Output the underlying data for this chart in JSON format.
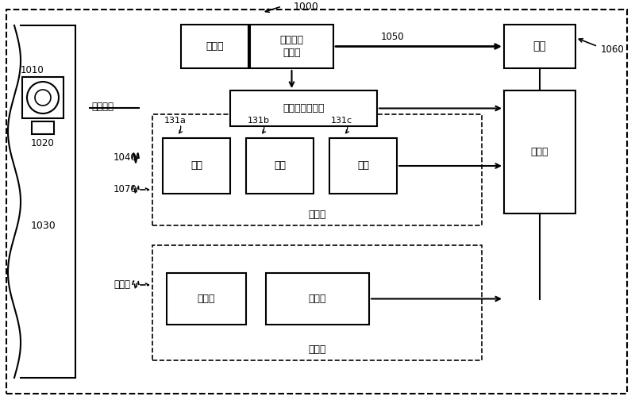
{
  "fig_width": 8.0,
  "fig_height": 5.04,
  "bg_color": "#ffffff",
  "labels": {
    "1000": "1000",
    "1050": "1050",
    "1060": "1060",
    "1010": "1010",
    "1020": "1020",
    "1030": "1030",
    "1040": "1040",
    "1070": "1070",
    "131a": "131a",
    "131b": "131b",
    "131c": "131c",
    "chip_lot": "晶片批次",
    "unload": "装卸部",
    "rfid_reader": "射频识别\n读取机",
    "host": "主机",
    "rfid_sensor": "射频识别感应器",
    "controller": "控制器",
    "btn": "按钮",
    "trigger": "触发器",
    "indicator": "指示器",
    "display": "显示幕",
    "ind_group": "指示器",
    "ind_left": "指示器"
  }
}
